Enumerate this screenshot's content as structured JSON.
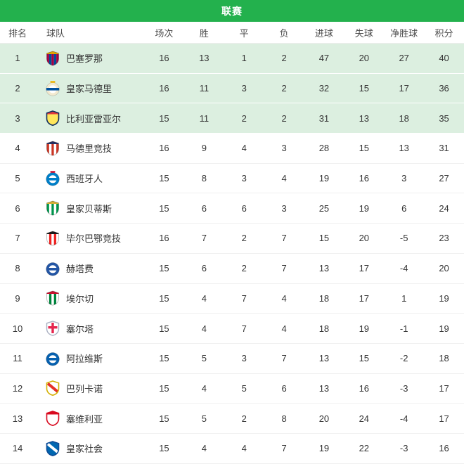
{
  "header": {
    "title": "联赛"
  },
  "colors": {
    "header_bg": "#23b14d",
    "header_text": "#ffffff",
    "highlight_row_bg": "#dcefe0",
    "row_bg": "#ffffff",
    "text": "#333333",
    "column_header_text": "#4d4d4d"
  },
  "table": {
    "columns": [
      {
        "key": "rank",
        "label": "排名"
      },
      {
        "key": "team",
        "label": "球队"
      },
      {
        "key": "played",
        "label": "场次"
      },
      {
        "key": "win",
        "label": "胜"
      },
      {
        "key": "draw",
        "label": "平"
      },
      {
        "key": "loss",
        "label": "负"
      },
      {
        "key": "goals_for",
        "label": "进球"
      },
      {
        "key": "goals_against",
        "label": "失球"
      },
      {
        "key": "goal_diff",
        "label": "净胜球"
      },
      {
        "key": "points",
        "label": "积分"
      }
    ],
    "rows": [
      {
        "rank": "1",
        "team": "巴塞罗那",
        "logo_icon": "barcelona-crest-icon",
        "logo_style": "stripes",
        "logo_colors": [
          "#a50044",
          "#004d98",
          "#dfa400"
        ],
        "played": "16",
        "win": "13",
        "draw": "1",
        "loss": "2",
        "goals_for": "47",
        "goals_against": "20",
        "goal_diff": "27",
        "points": "40",
        "highlighted": true
      },
      {
        "rank": "2",
        "team": "皇家马德里",
        "logo_icon": "real-madrid-crest-icon",
        "logo_style": "ring",
        "logo_colors": [
          "#f3ead0",
          "#ffffff",
          "#00529f",
          "#f0b400"
        ],
        "played": "16",
        "win": "11",
        "draw": "3",
        "loss": "2",
        "goals_for": "32",
        "goals_against": "15",
        "goal_diff": "17",
        "points": "36",
        "highlighted": true
      },
      {
        "rank": "3",
        "team": "比利亚雷亚尔",
        "logo_icon": "villarreal-crest-icon",
        "logo_style": "solid",
        "logo_colors": [
          "#ffe65c",
          "#12305e",
          "#e03a3e"
        ],
        "played": "15",
        "win": "11",
        "draw": "2",
        "loss": "2",
        "goals_for": "31",
        "goals_against": "13",
        "goal_diff": "18",
        "points": "35",
        "highlighted": true
      },
      {
        "rank": "4",
        "team": "马德里竞技",
        "logo_icon": "atletico-madrid-crest-icon",
        "logo_style": "stripes",
        "logo_colors": [
          "#cb3524",
          "#ffffff",
          "#262f61"
        ],
        "played": "16",
        "win": "9",
        "draw": "4",
        "loss": "3",
        "goals_for": "28",
        "goals_against": "15",
        "goal_diff": "13",
        "points": "31",
        "highlighted": false
      },
      {
        "rank": "5",
        "team": "西班牙人",
        "logo_icon": "espanyol-crest-icon",
        "logo_style": "ring",
        "logo_colors": [
          "#007fc8",
          "#ffffff",
          "#007fc8",
          "#d00f31"
        ],
        "played": "15",
        "win": "8",
        "draw": "3",
        "loss": "4",
        "goals_for": "19",
        "goals_against": "16",
        "goal_diff": "3",
        "points": "27",
        "highlighted": false
      },
      {
        "rank": "6",
        "team": "皇家贝蒂斯",
        "logo_icon": "real-betis-crest-icon",
        "logo_style": "stripes",
        "logo_colors": [
          "#00954c",
          "#ffffff",
          "#d4af37"
        ],
        "played": "15",
        "win": "6",
        "draw": "6",
        "loss": "3",
        "goals_for": "25",
        "goals_against": "19",
        "goal_diff": "6",
        "points": "24",
        "highlighted": false
      },
      {
        "rank": "7",
        "team": "毕尔巴鄂竞技",
        "logo_icon": "athletic-bilbao-crest-icon",
        "logo_style": "stripes",
        "logo_colors": [
          "#ffffff",
          "#ee2523",
          "#1a1a1a"
        ],
        "played": "16",
        "win": "7",
        "draw": "2",
        "loss": "7",
        "goals_for": "15",
        "goals_against": "20",
        "goal_diff": "-5",
        "points": "23",
        "highlighted": false
      },
      {
        "rank": "8",
        "team": "赫塔费",
        "logo_icon": "getafe-crest-icon",
        "logo_style": "ring",
        "logo_colors": [
          "#2456a5",
          "#ffffff",
          "#2456a5"
        ],
        "played": "15",
        "win": "6",
        "draw": "2",
        "loss": "7",
        "goals_for": "13",
        "goals_against": "17",
        "goal_diff": "-4",
        "points": "20",
        "highlighted": false
      },
      {
        "rank": "9",
        "team": "埃尔切",
        "logo_icon": "elche-crest-icon",
        "logo_style": "stripes",
        "logo_colors": [
          "#ffffff",
          "#00843d",
          "#c8102e"
        ],
        "played": "15",
        "win": "4",
        "draw": "7",
        "loss": "4",
        "goals_for": "18",
        "goals_against": "17",
        "goal_diff": "1",
        "points": "19",
        "highlighted": false
      },
      {
        "rank": "10",
        "team": "塞尔塔",
        "logo_icon": "celta-vigo-crest-icon",
        "logo_style": "cross",
        "logo_colors": [
          "#e5254e",
          "#aab0c2"
        ],
        "played": "15",
        "win": "4",
        "draw": "7",
        "loss": "4",
        "goals_for": "18",
        "goals_against": "19",
        "goal_diff": "-1",
        "points": "19",
        "highlighted": false
      },
      {
        "rank": "11",
        "team": "阿拉维斯",
        "logo_icon": "alaves-crest-icon",
        "logo_style": "ring",
        "logo_colors": [
          "#0761af",
          "#ffffff",
          "#0761af"
        ],
        "played": "15",
        "win": "5",
        "draw": "3",
        "loss": "7",
        "goals_for": "13",
        "goals_against": "15",
        "goal_diff": "-2",
        "points": "18",
        "highlighted": false
      },
      {
        "rank": "12",
        "team": "巴列卡诺",
        "logo_icon": "rayo-vallecano-crest-icon",
        "logo_style": "sash",
        "logo_colors": [
          "#e53027",
          "#d4b106",
          "#ffffff"
        ],
        "played": "15",
        "win": "4",
        "draw": "5",
        "loss": "6",
        "goals_for": "13",
        "goals_against": "16",
        "goal_diff": "-3",
        "points": "17",
        "highlighted": false
      },
      {
        "rank": "13",
        "team": "塞维利亚",
        "logo_icon": "sevilla-crest-icon",
        "logo_style": "solid",
        "logo_colors": [
          "#ffffff",
          "#d8091f",
          "#d8091f"
        ],
        "played": "15",
        "win": "5",
        "draw": "2",
        "loss": "8",
        "goals_for": "20",
        "goals_against": "24",
        "goal_diff": "-4",
        "points": "17",
        "highlighted": false
      },
      {
        "rank": "14",
        "team": "皇家社会",
        "logo_icon": "real-sociedad-crest-icon",
        "logo_style": "sash",
        "logo_colors": [
          "#ffffff",
          "#0f4c97",
          "#0067b1"
        ],
        "played": "15",
        "win": "4",
        "draw": "4",
        "loss": "7",
        "goals_for": "19",
        "goals_against": "22",
        "goal_diff": "-3",
        "points": "16",
        "highlighted": false
      }
    ]
  }
}
